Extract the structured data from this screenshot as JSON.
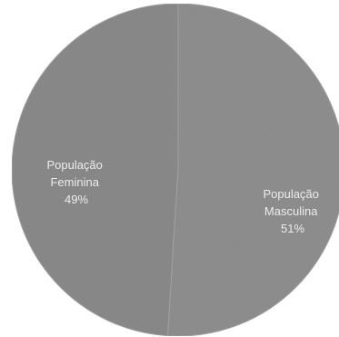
{
  "chart_data": {
    "type": "pie",
    "slices": [
      {
        "label_lines": [
          "População",
          "Feminina"
        ],
        "percent_label": "49%",
        "value": 49,
        "color": "#8a8a8a"
      },
      {
        "label_lines": [
          "População",
          "Masculina"
        ],
        "percent_label": "51%",
        "value": 51,
        "color": "#8f8f8f"
      }
    ],
    "title": "",
    "legend": "none"
  }
}
